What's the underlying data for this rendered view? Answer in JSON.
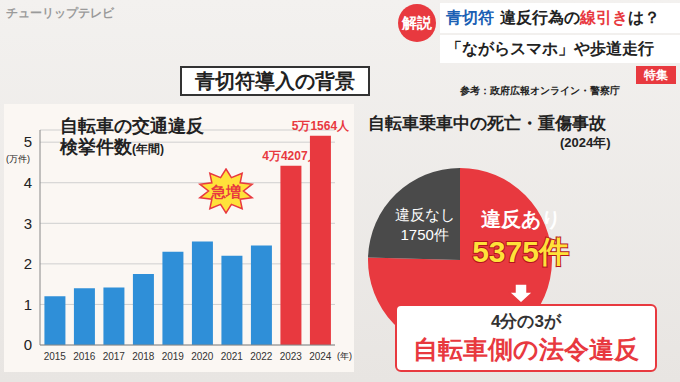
{
  "header": {
    "logo": "チューリップテレビ",
    "tag": "解説",
    "line1": [
      "青切符",
      "違反行為の",
      "線引き",
      "は？"
    ],
    "line2": "「ながらスマホ」や歩道走行",
    "corner": "特集",
    "title": "青切符導入の背景",
    "source": "参考：政府広報オンライン・警察庁"
  },
  "chart_data": [
    {
      "type": "bar",
      "title": "自転車の交通違反",
      "subtitle": "検挙件数(年間)",
      "ylabel": "(万件)",
      "xlabel": "(年)",
      "categories": [
        "2015",
        "2016",
        "2017",
        "2018",
        "2019",
        "2020",
        "2021",
        "2022",
        "2023",
        "2024"
      ],
      "values": [
        1.2,
        1.4,
        1.42,
        1.75,
        2.3,
        2.55,
        2.2,
        2.45,
        4.4207,
        5.1564
      ],
      "value_labels": [
        null,
        null,
        null,
        null,
        null,
        null,
        null,
        null,
        "4万4207人",
        "5万1564人"
      ],
      "data_labels": true,
      "colors": [
        "#2f8fd8",
        "#2f8fd8",
        "#2f8fd8",
        "#2f8fd8",
        "#2f8fd8",
        "#2f8fd8",
        "#2f8fd8",
        "#2f8fd8",
        "#e8393f",
        "#e8393f"
      ],
      "ylim": [
        0,
        5.3
      ],
      "yticks": [
        0,
        1,
        2,
        3,
        4,
        5
      ],
      "grid": true,
      "annotation": "急増"
    },
    {
      "type": "pie",
      "title": "自転車乗車中の死亡・重傷事故",
      "subtitle": "(2024年)",
      "categories": [
        "違反あり",
        "違反なし"
      ],
      "values": [
        5375,
        1750
      ],
      "value_labels": [
        "5375件",
        "1750件"
      ],
      "data_labels": true,
      "colors": [
        "#e8393f",
        "#4a4a4a"
      ],
      "annotations": [
        "4分の3が",
        "自転車側の法令違反"
      ]
    }
  ]
}
